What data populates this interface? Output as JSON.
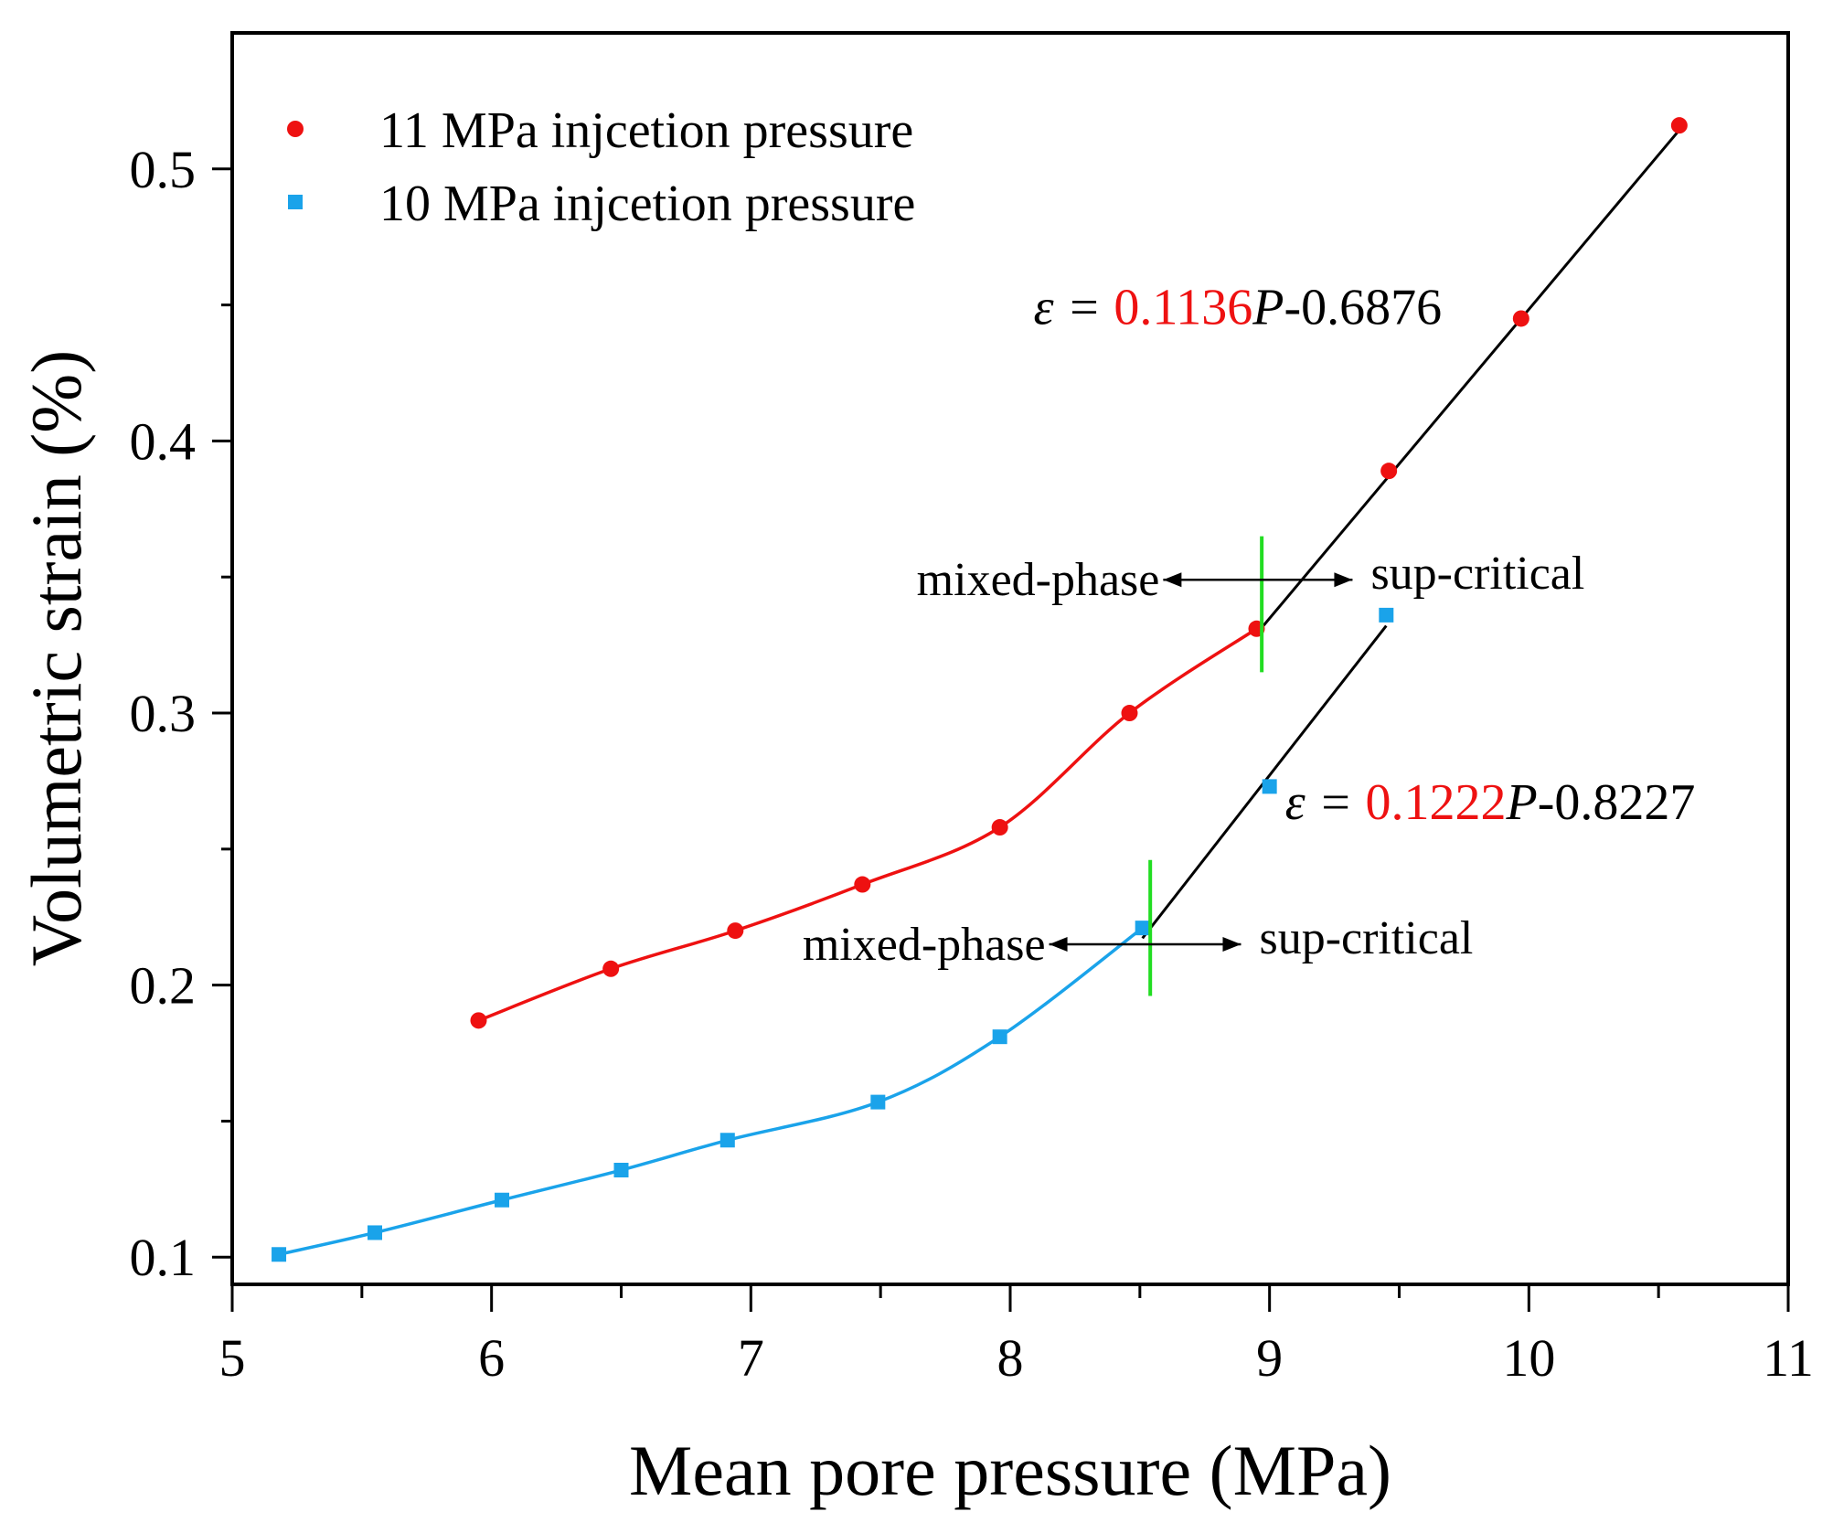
{
  "chart_data": {
    "type": "scatter",
    "xlabel": "Mean pore pressure (MPa)",
    "ylabel": "Volumetric strain (%)",
    "xlim": [
      5,
      11
    ],
    "ylim": [
      0.09,
      0.55
    ],
    "xticks": [
      5,
      6,
      7,
      8,
      9,
      10,
      11
    ],
    "xtick_labels": [
      "5",
      "6",
      "7",
      "8",
      "9",
      "10",
      "11"
    ],
    "yticks": [
      0.1,
      0.2,
      0.3,
      0.4,
      0.5
    ],
    "ytick_labels": [
      "0.1",
      "0.2",
      "0.3",
      "0.4",
      "0.5"
    ],
    "grid": false,
    "legend_position": "top-left",
    "series": [
      {
        "name": "11 MPa injcetion pressure",
        "marker": "circle",
        "color": "#ee1111",
        "x": [
          5.95,
          6.46,
          6.94,
          7.43,
          7.96,
          8.46,
          8.95,
          9.46,
          9.97,
          10.58
        ],
        "y": [
          0.187,
          0.206,
          0.22,
          0.237,
          0.258,
          0.3,
          0.331,
          0.389,
          0.445,
          0.516
        ],
        "curve_fit_range": [
          5.95,
          8.95
        ],
        "linear_fit": {
          "slope": 0.1136,
          "intercept": -0.6876,
          "range": [
            8.95,
            10.58
          ]
        },
        "phase_boundary": {
          "x": 8.97,
          "y_range": [
            0.315,
            0.365
          ],
          "arrow_y": 0.349,
          "arrow_x": [
            8.59,
            9.32
          ]
        },
        "equation": {
          "prefix": "ε = ",
          "slope_text": "0.1136",
          "var": "P",
          "suffix": "-0.6876"
        }
      },
      {
        "name": "10 MPa injcetion pressure",
        "marker": "square",
        "color": "#1aa3ea",
        "x": [
          5.18,
          5.55,
          6.04,
          6.5,
          6.91,
          7.49,
          7.96,
          8.51,
          9.0,
          9.45
        ],
        "y": [
          0.101,
          0.109,
          0.121,
          0.132,
          0.143,
          0.157,
          0.181,
          0.221,
          0.273,
          0.336
        ],
        "curve_fit_range": [
          5.18,
          8.51
        ],
        "linear_fit": {
          "slope": 0.1222,
          "intercept": -0.8227,
          "range": [
            8.51,
            9.45
          ]
        },
        "phase_boundary": {
          "x": 8.54,
          "y_range": [
            0.196,
            0.246
          ],
          "arrow_y": 0.215,
          "arrow_x": [
            8.15,
            8.89
          ]
        },
        "equation": {
          "prefix": "ε = ",
          "slope_text": "0.1222",
          "var": "P",
          "suffix": "-0.8227"
        }
      }
    ],
    "annotations": {
      "left_label": "mixed-phase",
      "right_label": "sup-critical"
    },
    "colors": {
      "boundary": "#22dd22",
      "fit_line": "#000000",
      "equation_slope": "#ee1111"
    }
  }
}
